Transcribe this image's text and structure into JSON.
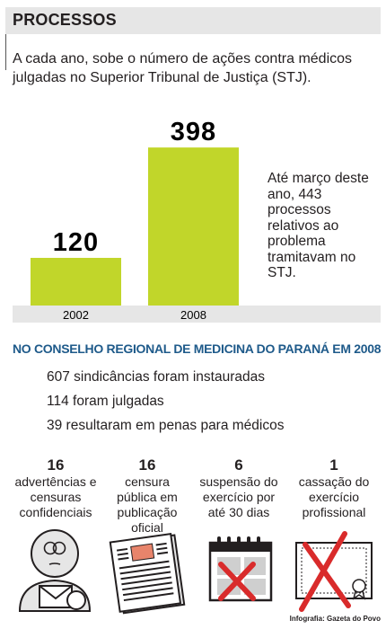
{
  "header": {
    "title": "PROCESSOS"
  },
  "intro": "A cada ano, sobe o número de ações contra médicos julgadas no Superior Tribunal de Justiça (STJ).",
  "note": "Até março deste ano, 443 processos relativos ao problema tramitavam no STJ.",
  "chart_data": {
    "type": "bar",
    "categories": [
      "2002",
      "2008"
    ],
    "values": [
      120,
      398
    ],
    "title": "",
    "xlabel": "",
    "ylabel": "",
    "ylim": [
      0,
      430
    ],
    "grid": false,
    "bar_color": "#c1d62a",
    "axis_band_color": "#e6e6e6"
  },
  "council": {
    "title": "NO CONSELHO REGIONAL DE MEDICINA DO PARANÁ EM 2008",
    "stats": [
      "607 sindicâncias foram instauradas",
      "114 foram julgadas",
      "39 resultaram em penas para médicos"
    ]
  },
  "outcomes": [
    {
      "number": "16",
      "label": "advertências e censuras confidenciais",
      "icon": "person-letter-icon"
    },
    {
      "number": "16",
      "label": "censura pública em publicação oficial",
      "icon": "newspaper-icon"
    },
    {
      "number": "6",
      "label": "suspensão do exercício por até 30 dias",
      "icon": "calendar-x-icon"
    },
    {
      "number": "1",
      "label": "cassação do exercício profissional",
      "icon": "diploma-x-icon"
    }
  ],
  "credit": "Infografia: Gazeta do Povo",
  "colors": {
    "accent_blue": "#1e5a8a",
    "bar_green": "#c1d62a",
    "red_x": "#d92b2b",
    "gray": "#e6e6e6"
  }
}
